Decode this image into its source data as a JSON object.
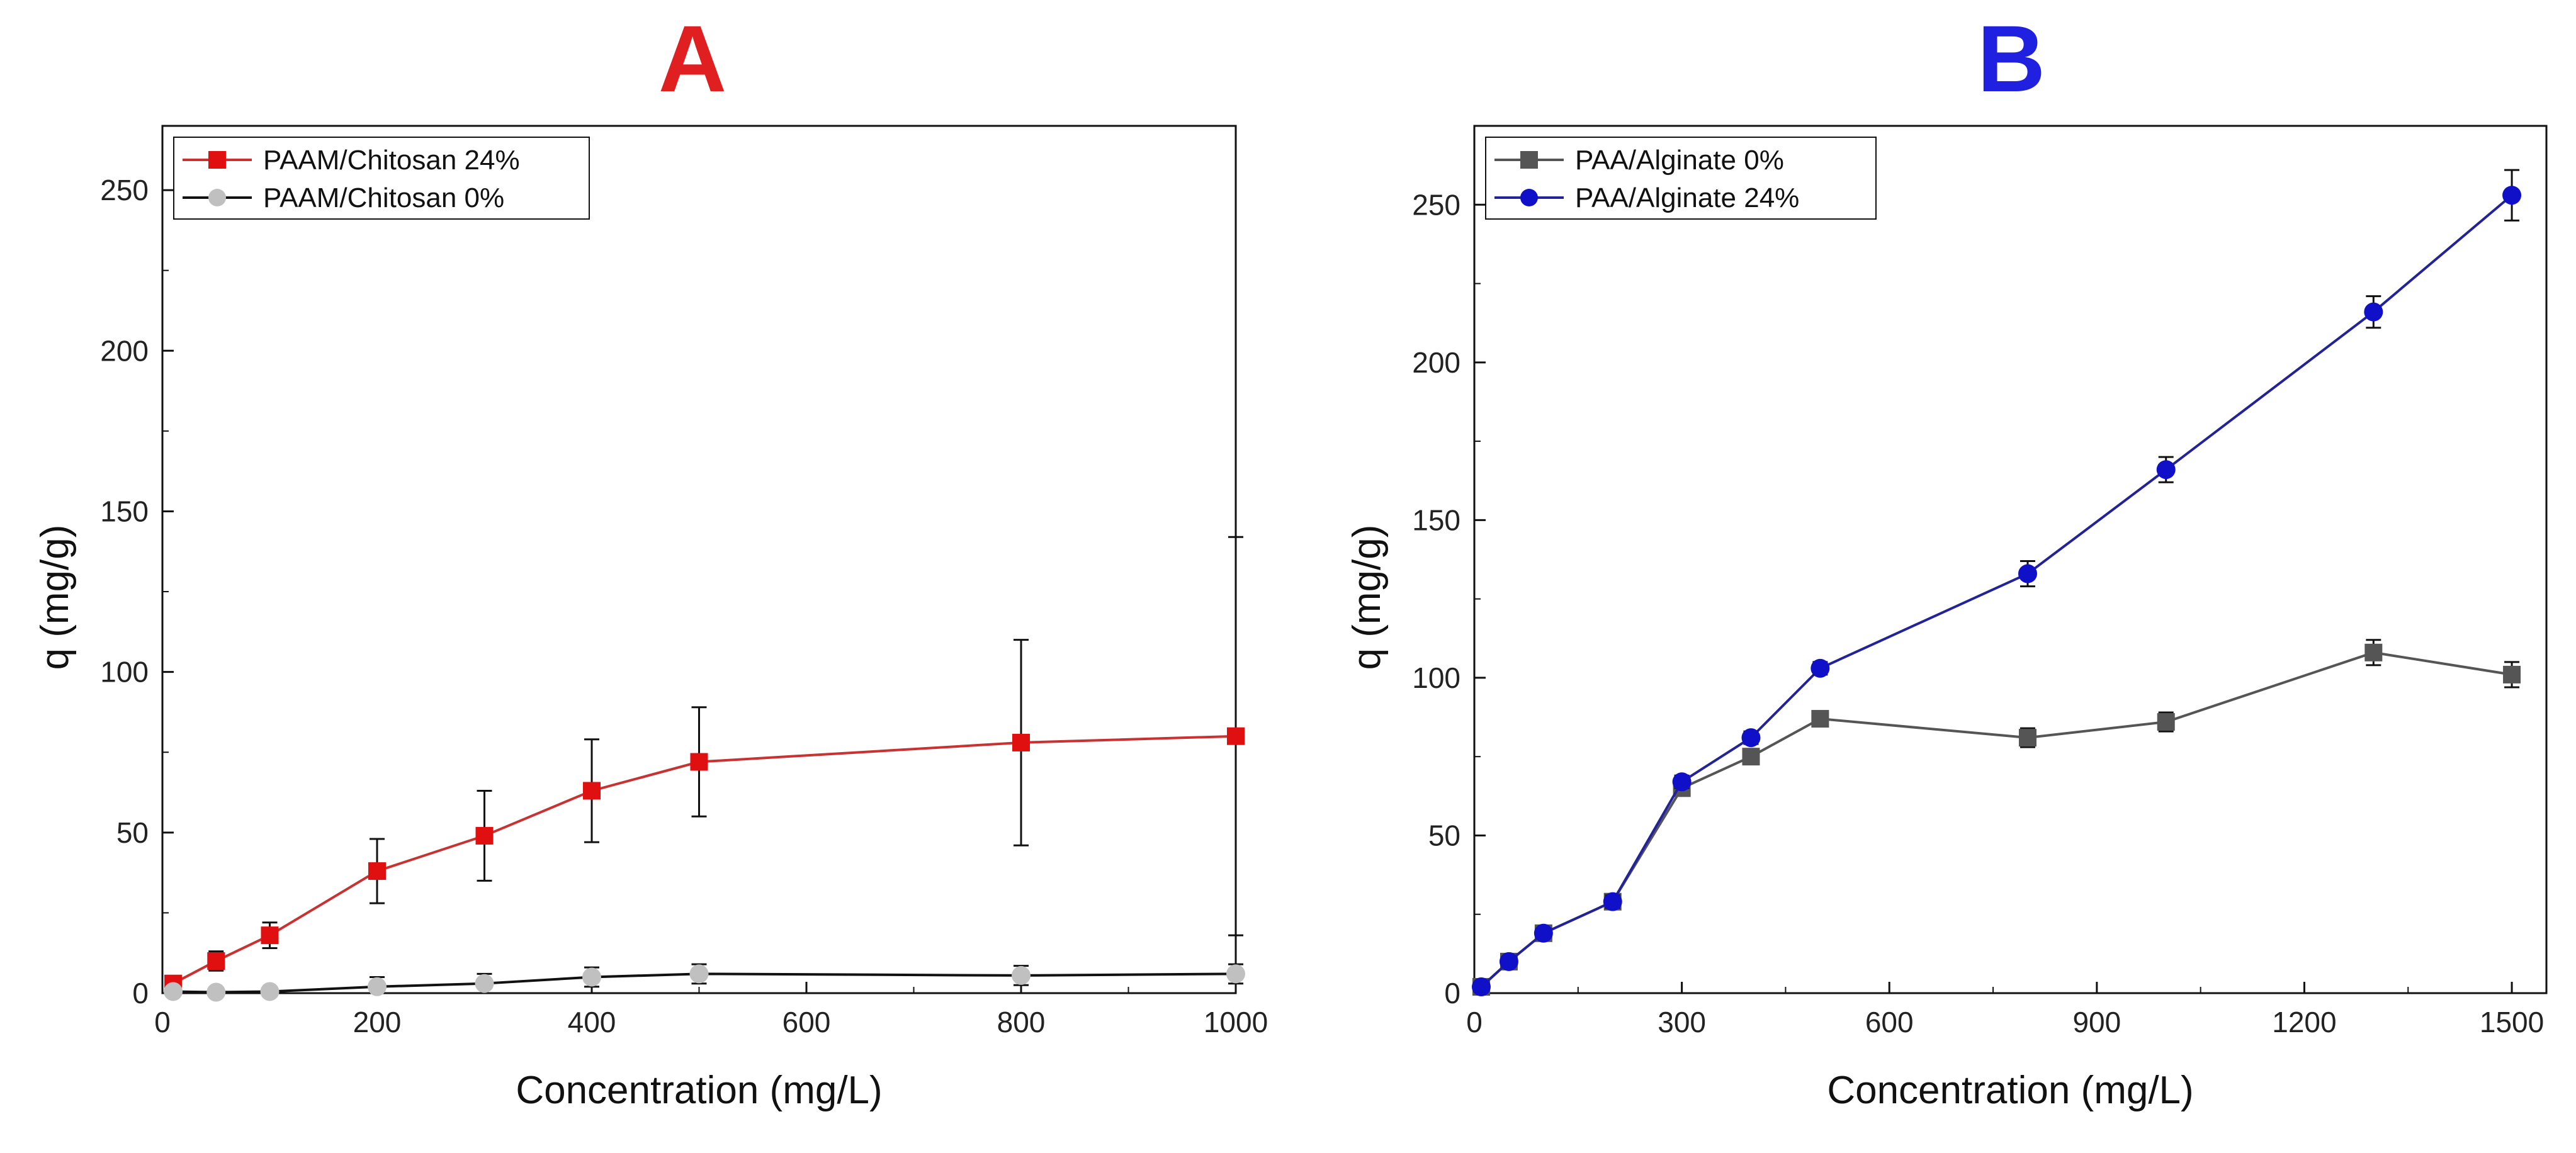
{
  "chart_data": [
    {
      "type": "line",
      "panel_label": "A",
      "panel_label_color": "#e02020",
      "title": "",
      "xlabel": "Concentration (mg/L)",
      "ylabel": "q (mg/g)",
      "xlim": [
        0,
        1000
      ],
      "ylim": [
        0,
        270
      ],
      "xticks": [
        0,
        200,
        400,
        600,
        800,
        1000
      ],
      "yticks": [
        0,
        50,
        100,
        150,
        200,
        250
      ],
      "grid": false,
      "legend_position": "top-left",
      "x": [
        10,
        50,
        100,
        200,
        300,
        400,
        500,
        800,
        1000
      ],
      "series": [
        {
          "name": "PAAM/Chitosan 24%",
          "line_color": "#c83232",
          "marker_color": "#e01010",
          "marker": "square",
          "values": [
            3,
            10,
            18,
            38,
            49,
            63,
            72,
            78,
            80
          ],
          "error": [
            2,
            3,
            4,
            10,
            14,
            16,
            17,
            32,
            62
          ]
        },
        {
          "name": "PAAM/Chitosan 0%",
          "line_color": "#111111",
          "marker_color": "#c0c0c0",
          "marker": "circle",
          "values": [
            0.5,
            0.3,
            0.5,
            2,
            3,
            5,
            6,
            5.5,
            6
          ],
          "error": [
            1,
            1,
            1,
            3,
            3,
            3,
            3,
            3,
            3
          ]
        }
      ]
    },
    {
      "type": "line",
      "panel_label": "B",
      "panel_label_color": "#2020e0",
      "title": "",
      "xlabel": "Concentration (mg/L)",
      "ylabel": "q (mg/g)",
      "xlim": [
        0,
        1550
      ],
      "ylim": [
        0,
        275
      ],
      "xticks": [
        0,
        300,
        600,
        900,
        1200,
        1500
      ],
      "yticks": [
        0,
        50,
        100,
        150,
        200,
        250
      ],
      "grid": false,
      "legend_position": "top-left",
      "x": [
        10,
        50,
        100,
        200,
        300,
        400,
        500,
        800,
        1000,
        1300,
        1500
      ],
      "series": [
        {
          "name": "PAA/Alginate 0%",
          "line_color": "#555555",
          "marker_color": "#555555",
          "marker": "square",
          "values": [
            2,
            10,
            19,
            29,
            65,
            75,
            87,
            81,
            86,
            108,
            101
          ],
          "error": [
            1,
            1,
            1,
            2,
            2,
            2,
            2,
            3,
            3,
            4,
            4
          ]
        },
        {
          "name": "PAA/Alginate 24%",
          "line_color": "#22229a",
          "marker_color": "#1010c8",
          "marker": "circle",
          "values": [
            2,
            10,
            19,
            29,
            67,
            81,
            103,
            133,
            166,
            216,
            253
          ],
          "error": [
            1,
            1,
            1,
            2,
            2,
            2,
            2,
            4,
            4,
            5,
            8
          ]
        }
      ]
    }
  ]
}
